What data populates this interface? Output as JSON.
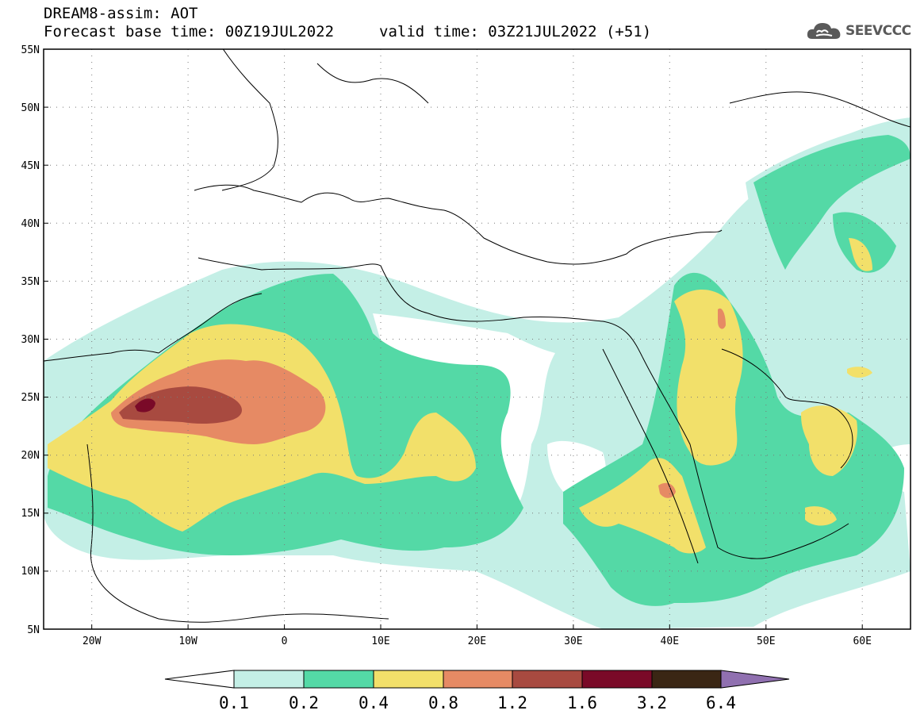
{
  "header": {
    "title": "DREAM8-assim: AOT",
    "forecast_base": "Forecast base time: 00Z19JUL2022",
    "valid_time": "valid time: 03Z21JUL2022 (+51)"
  },
  "logo": {
    "text": "SEEVCCC",
    "icon": "cloud-icon"
  },
  "map": {
    "extent": {
      "lon": [
        -25,
        65
      ],
      "lat": [
        5,
        55
      ]
    },
    "lat_labels": [
      "55N",
      "50N",
      "45N",
      "40N",
      "35N",
      "30N",
      "25N",
      "20N",
      "15N",
      "10N",
      "5N"
    ],
    "lon_labels": [
      "20W",
      "10W",
      "0",
      "10E",
      "20E",
      "30E",
      "40E",
      "50E",
      "60E"
    ],
    "grid": true
  },
  "colorbar": {
    "labels": [
      "0.1",
      "0.2",
      "0.4",
      "0.8",
      "1.2",
      "1.6",
      "3.2",
      "6.4"
    ],
    "colors": [
      "#c4efe6",
      "#54d9a6",
      "#f2e06a",
      "#e68a64",
      "#a84a40",
      "#7a0a28",
      "#3a2614",
      "#9070b0"
    ]
  }
}
